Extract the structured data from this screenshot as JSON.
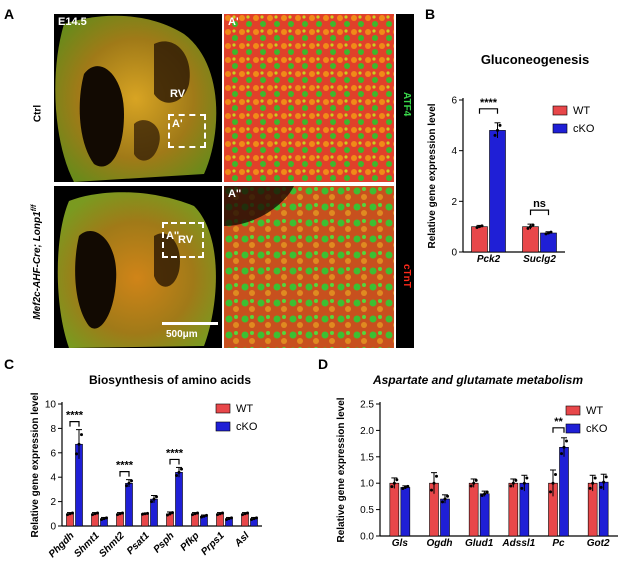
{
  "panels": {
    "A": "A",
    "B": "B",
    "C": "C",
    "D": "D"
  },
  "panel_a": {
    "stage": "E14.5",
    "row1": "Ctrl",
    "row2_line1": "Mef2c-AHF-Cre;",
    "row2_line2": "Lonp1",
    "row2_sup": "f/f",
    "rv1": "RV",
    "rv2": "RV",
    "box1": "A'",
    "box2": "A''",
    "zoom1": "A'",
    "zoom2": "A''",
    "stain_green": "ATF4",
    "stain_red": "cTnT",
    "scalebar": "500μm",
    "colors": {
      "green": "#39d64a",
      "red": "#ff2a1a",
      "heart": "#b48a1e",
      "bg": "#000000"
    }
  },
  "legend": {
    "wt": "WT",
    "cko": "cKO"
  },
  "colors": {
    "wt": "#e8474a",
    "cko": "#1f1fd6"
  },
  "chart_data": [
    {
      "type": "bar",
      "title": "Gluconeogenesis",
      "ylabel": "Relative gene expression level",
      "categories": [
        "Pck2",
        "Suclg2"
      ],
      "series": [
        {
          "name": "WT",
          "values": [
            1.0,
            1.0
          ],
          "errors": [
            0.05,
            0.1
          ]
        },
        {
          "name": "cKO",
          "values": [
            4.8,
            0.75
          ],
          "errors": [
            0.3,
            0.05
          ]
        }
      ],
      "ylim": [
        0,
        6
      ],
      "yticks": [
        0,
        2,
        4,
        6
      ],
      "significance": [
        "****",
        "ns"
      ]
    },
    {
      "type": "bar",
      "title": "Biosynthesis of amino acids",
      "ylabel": "Relative gene expression level",
      "categories": [
        "Phgdh",
        "Shmt1",
        "Shmt2",
        "Psat1",
        "Psph",
        "Pfkp",
        "Prps1",
        "Asl"
      ],
      "series": [
        {
          "name": "WT",
          "values": [
            1.0,
            1.0,
            1.0,
            1.0,
            1.0,
            1.0,
            1.0,
            1.0
          ],
          "errors": [
            0.1,
            0.1,
            0.1,
            0.05,
            0.15,
            0.1,
            0.1,
            0.1
          ]
        },
        {
          "name": "cKO",
          "values": [
            6.7,
            0.6,
            3.5,
            2.2,
            4.4,
            0.8,
            0.6,
            0.6
          ],
          "errors": [
            1.2,
            0.1,
            0.3,
            0.3,
            0.4,
            0.1,
            0.1,
            0.1
          ]
        }
      ],
      "ylim": [
        0,
        10
      ],
      "yticks": [
        0,
        2,
        4,
        6,
        8,
        10
      ],
      "significance": [
        "****",
        "",
        "****",
        "",
        "****",
        "",
        "",
        ""
      ]
    },
    {
      "type": "bar",
      "title": "Aspartate and glutamate metabolism",
      "ylabel": "Relative gene expression level",
      "categories": [
        "Gls",
        "Ogdh",
        "Glud1",
        "Adssl1",
        "Pc",
        "Got2"
      ],
      "series": [
        {
          "name": "WT",
          "values": [
            1.0,
            1.0,
            1.0,
            1.0,
            1.0,
            1.0
          ],
          "errors": [
            0.1,
            0.2,
            0.08,
            0.08,
            0.25,
            0.15
          ]
        },
        {
          "name": "cKO",
          "values": [
            0.92,
            0.7,
            0.8,
            1.0,
            1.68,
            1.02
          ],
          "errors": [
            0.03,
            0.08,
            0.05,
            0.15,
            0.18,
            0.15
          ]
        }
      ],
      "ylim": [
        0,
        2.5
      ],
      "yticks": [
        0.0,
        0.5,
        1.0,
        1.5,
        2.0,
        2.5
      ],
      "significance": [
        "",
        "",
        "",
        "",
        "**",
        ""
      ]
    }
  ]
}
